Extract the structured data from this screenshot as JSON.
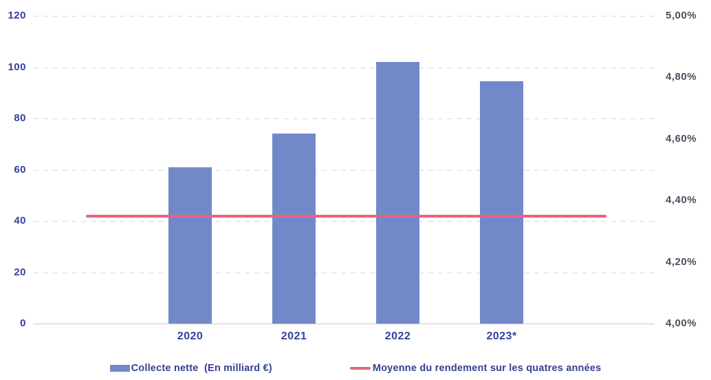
{
  "chart_data": {
    "type": "bar",
    "title": "",
    "categories": [
      "2020",
      "2021",
      "2022",
      "2023*"
    ],
    "series": [
      {
        "name": "Collecte nette  (En milliard €)",
        "type": "bar",
        "axis": "left",
        "values": [
          61,
          74,
          102,
          94.5
        ],
        "color": "#7289c9"
      },
      {
        "name": "Moyenne du rendement sur les quatres années",
        "type": "line",
        "axis": "right",
        "value": 4.35,
        "color": "#e9637e"
      }
    ],
    "left_axis": {
      "label": "",
      "ticks": [
        0,
        20,
        40,
        60,
        80,
        100,
        120
      ],
      "min": 0,
      "max": 120,
      "tick_color": "#33409e"
    },
    "right_axis": {
      "label": "",
      "ticks": [
        "4,00%",
        "4,20%",
        "4,40%",
        "4,60%",
        "4,80%",
        "5,00%"
      ],
      "min": 4.0,
      "max": 5.0,
      "tick_color": "#4b4e5d"
    },
    "grid": "horizontal dashed",
    "gridline_color": "#dbdbdb",
    "baseline_color": "#c9c9c9",
    "legend_position": "bottom"
  },
  "legend": {
    "bar_label": "Collecte nette  (En milliard €)",
    "line_label": "Moyenne du rendement sur les quatres années"
  }
}
